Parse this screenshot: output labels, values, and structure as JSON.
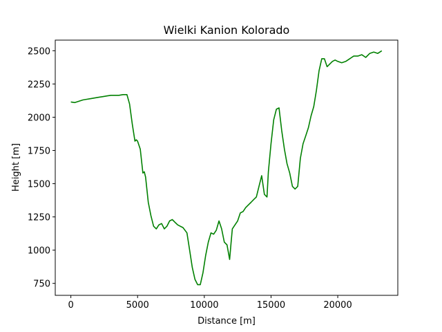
{
  "chart_data": {
    "type": "line",
    "title": "Wielki Kanion Kolorado",
    "xlabel": "Distance [m]",
    "ylabel": "Height [m]",
    "xlim": [
      -1170,
      24500
    ],
    "ylim": [
      660,
      2580
    ],
    "xticks": [
      0,
      5000,
      10000,
      15000,
      20000
    ],
    "yticks": [
      750,
      1000,
      1250,
      1500,
      1750,
      2000,
      2250,
      2500
    ],
    "grid": false,
    "colors": {
      "line": "#008000",
      "axes": "#000000",
      "background": "#ffffff"
    },
    "series": [
      {
        "x": [
          0,
          300,
          600,
          900,
          1200,
          1500,
          1800,
          2100,
          2400,
          2700,
          3000,
          3300,
          3600,
          3900,
          4200,
          4400,
          4600,
          4800,
          4900,
          5000,
          5200,
          5400,
          5500,
          5600,
          5800,
          6000,
          6200,
          6400,
          6600,
          6800,
          7000,
          7200,
          7400,
          7600,
          7800,
          8000,
          8200,
          8400,
          8700,
          8900,
          9100,
          9300,
          9500,
          9700,
          9900,
          10100,
          10300,
          10500,
          10700,
          10900,
          11100,
          11300,
          11500,
          11700,
          11900,
          12000,
          12100,
          12300,
          12500,
          12700,
          12900,
          13100,
          13300,
          13500,
          13700,
          13900,
          14100,
          14300,
          14500,
          14700,
          14800,
          15000,
          15200,
          15400,
          15600,
          15800,
          16000,
          16200,
          16400,
          16600,
          16800,
          17000,
          17200,
          17400,
          17600,
          17800,
          18000,
          18200,
          18400,
          18600,
          18800,
          19000,
          19200,
          19400,
          19600,
          19800,
          20000,
          20300,
          20600,
          20900,
          21200,
          21500,
          21800,
          22100,
          22400,
          22700,
          23000,
          23300
        ],
        "y": [
          2115,
          2110,
          2120,
          2130,
          2135,
          2140,
          2145,
          2150,
          2155,
          2160,
          2165,
          2165,
          2165,
          2170,
          2170,
          2100,
          1950,
          1820,
          1830,
          1820,
          1760,
          1580,
          1590,
          1550,
          1360,
          1260,
          1180,
          1160,
          1190,
          1200,
          1160,
          1180,
          1220,
          1230,
          1210,
          1190,
          1180,
          1170,
          1130,
          1000,
          870,
          780,
          740,
          740,
          830,
          960,
          1060,
          1130,
          1120,
          1150,
          1220,
          1160,
          1060,
          1040,
          930,
          1050,
          1160,
          1190,
          1220,
          1280,
          1290,
          1320,
          1340,
          1360,
          1380,
          1400,
          1480,
          1560,
          1420,
          1400,
          1590,
          1800,
          1980,
          2060,
          2070,
          1900,
          1760,
          1650,
          1580,
          1480,
          1460,
          1480,
          1690,
          1800,
          1860,
          1920,
          2010,
          2080,
          2200,
          2350,
          2440,
          2440,
          2380,
          2400,
          2420,
          2430,
          2420,
          2410,
          2420,
          2440,
          2460,
          2460,
          2470,
          2450,
          2480,
          2490,
          2480,
          2500
        ]
      }
    ]
  }
}
